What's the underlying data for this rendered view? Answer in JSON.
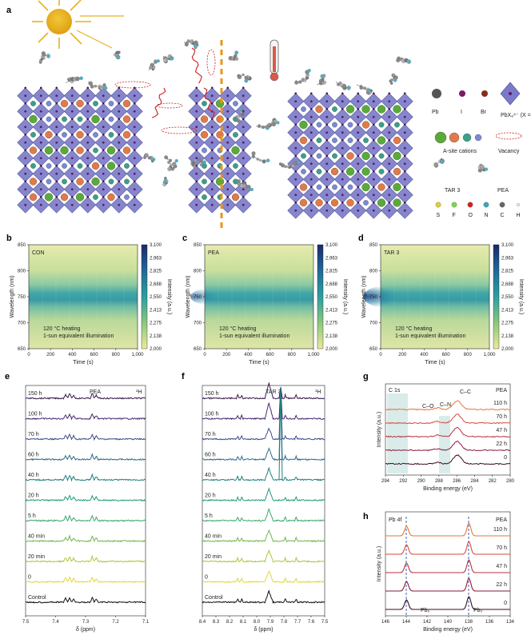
{
  "panel_a": {
    "label": "a",
    "legend": {
      "pb": "Pb",
      "i": "I",
      "br": "Br",
      "octahedron": "PbX₆⁴⁻ (X = I/Br)",
      "a_site": "A-site cations",
      "vacancy": "Vacancy",
      "tar3": "TAR 3",
      "pea": "PEA",
      "elements": [
        "S",
        "F",
        "O",
        "N",
        "C",
        "H"
      ]
    },
    "colors": {
      "octahedron": "#7a7ac8",
      "sun": "#e8b020",
      "dash": "#e8961e",
      "arrow": "#c82020"
    }
  },
  "pl_maps": {
    "ylabel": "Wavelength (nm)",
    "xlabel": "Time (s)",
    "yticks": [
      "850",
      "800",
      "750",
      "700",
      "650"
    ],
    "xticks": [
      "0",
      "200",
      "400",
      "600",
      "800",
      "1,000"
    ],
    "cbar_label": "Intensity (a.u.)",
    "cbar_ticks": [
      "3,100",
      "2,963",
      "2,825",
      "2,688",
      "2,550",
      "2,413",
      "2,275",
      "2,138",
      "2,000"
    ],
    "note1": "120 °C heating",
    "note2": "1-sun equivalent illumination",
    "panels": [
      {
        "label": "b",
        "title": "CON"
      },
      {
        "label": "c",
        "title": "PEA"
      },
      {
        "label": "d",
        "title": "TAR 3"
      }
    ]
  },
  "nmr": {
    "xlabel": "δ (ppm)",
    "nucleus": "¹H",
    "rows": [
      "150 h",
      "100 h",
      "70 h",
      "60 h",
      "40 h",
      "20 h",
      "5 h",
      "40 min",
      "20 min",
      "0",
      "Control"
    ],
    "row_colors": [
      "#3a1a4a",
      "#4a2870",
      "#3f4a8a",
      "#2f6a8a",
      "#1f8080",
      "#1f9a7a",
      "#3aa868",
      "#6cb84a",
      "#a8c83a",
      "#e0d83a",
      "#111111"
    ],
    "panel_e": {
      "label": "e",
      "title": "PEA",
      "xticks": [
        "7.5",
        "7.4",
        "7.3",
        "7.2",
        "7.1"
      ]
    },
    "panel_f": {
      "label": "f",
      "title": "TAR 3",
      "title_color": "#2a8ab0",
      "xticks": [
        "8.4",
        "8.3",
        "8.2",
        "8.1",
        "8.0",
        "7.9",
        "7.8",
        "7.7",
        "7.6",
        "7.5"
      ]
    }
  },
  "panel_g": {
    "label": "g",
    "title": "C 1s",
    "sample": "PEA",
    "ylabel": "Intensity (a.u.)",
    "xlabel": "Binding energy (eV)",
    "xticks": [
      "294",
      "292",
      "290",
      "288",
      "286",
      "284",
      "282",
      "280"
    ],
    "rows": [
      "110 h",
      "70 h",
      "47 h",
      "22 h",
      "0"
    ],
    "peaks": {
      "cc": "C–C",
      "co": "C–O",
      "cn": "C–N"
    },
    "row_colors": [
      "#e8743a",
      "#d84a3a",
      "#b83040",
      "#8a1a3a",
      "#3a0a20"
    ]
  },
  "panel_h": {
    "label": "h",
    "title": "Pb 4f",
    "sample": "PEA",
    "ylabel": "Intensity (a.u.)",
    "xlabel": "Binding energy (eV)",
    "xticks": [
      "146",
      "144",
      "142",
      "140",
      "138",
      "136",
      "134"
    ],
    "rows": [
      "110 h",
      "70 h",
      "47 h",
      "22 h",
      "0"
    ],
    "pb0_left": "Pb₀",
    "pb0_right": "Pb₀",
    "row_colors": [
      "#e8743a",
      "#d84a3a",
      "#b83040",
      "#8a1a3a",
      "#3a0a20"
    ]
  }
}
